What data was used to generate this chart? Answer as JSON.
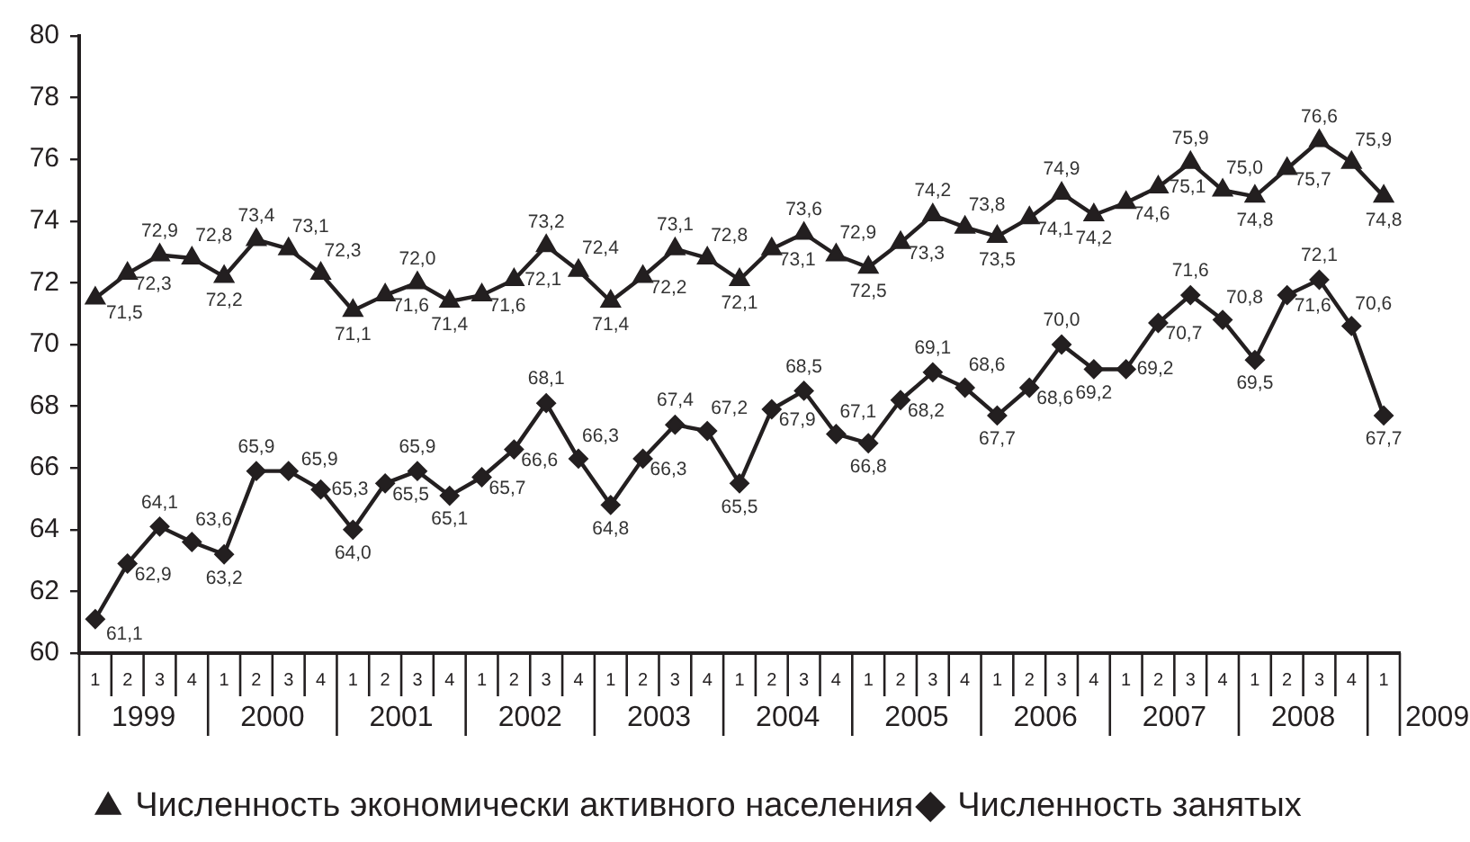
{
  "chart_data": {
    "type": "line",
    "categories": [
      "1",
      "2",
      "3",
      "4",
      "1",
      "2",
      "3",
      "4",
      "1",
      "2",
      "3",
      "4",
      "1",
      "2",
      "3",
      "4",
      "1",
      "2",
      "3",
      "4",
      "1",
      "2",
      "3",
      "4",
      "1",
      "2",
      "3",
      "4",
      "1",
      "2",
      "3",
      "4",
      "1",
      "2",
      "3",
      "4",
      "1",
      "2",
      "3",
      "4",
      "1"
    ],
    "series": [
      {
        "name": "Численность экономически активного населения",
        "color": "#231f20",
        "marker": "triangle",
        "values": [
          71.5,
          72.3,
          72.9,
          72.8,
          72.2,
          73.4,
          73.1,
          72.3,
          71.1,
          71.6,
          72.0,
          71.4,
          71.6,
          72.1,
          73.2,
          72.4,
          71.4,
          72.2,
          73.1,
          72.8,
          72.1,
          73.1,
          73.6,
          72.9,
          72.5,
          73.3,
          74.2,
          73.8,
          73.5,
          74.1,
          74.9,
          74.2,
          74.6,
          75.1,
          75.9,
          75.0,
          74.8,
          75.7,
          76.6,
          75.9,
          74.8
        ],
        "value_labels": [
          "71,5",
          "72,3",
          "72,9",
          "72,8",
          "72,2",
          "73,4",
          "73,1",
          "72,3",
          "71,1",
          "71,6",
          "72,0",
          "71,4",
          "71,6",
          "72,1",
          "73,2",
          "72,4",
          "71,4",
          "72,2",
          "73,1",
          "72,8",
          "72,1",
          "73,1",
          "73,6",
          "72,9",
          "72,5",
          "73,3",
          "74,2",
          "73,8",
          "73,5",
          "74,1",
          "74,9",
          "74,2",
          "74,6",
          "75,1",
          "75,9",
          "75,0",
          "74,8",
          "75,7",
          "76,6",
          "75,9",
          "74,8"
        ]
      },
      {
        "name": "Численность занятых",
        "color": "#231f20",
        "marker": "diamond",
        "values": [
          61.1,
          62.9,
          64.1,
          63.6,
          63.2,
          65.9,
          65.9,
          65.3,
          64.0,
          65.5,
          65.9,
          65.1,
          65.7,
          66.6,
          68.1,
          66.3,
          64.8,
          66.3,
          67.4,
          67.2,
          65.5,
          67.9,
          68.5,
          67.1,
          66.8,
          68.2,
          69.1,
          68.6,
          67.7,
          68.6,
          70.0,
          69.2,
          69.2,
          70.7,
          71.6,
          70.8,
          69.5,
          71.6,
          72.1,
          70.6,
          67.7
        ],
        "value_labels": [
          "61,1",
          "62,9",
          "64,1",
          "63,6",
          "63,2",
          "65,9",
          "65,9",
          "65,3",
          "64,0",
          "65,5",
          "65,9",
          "65,1",
          "65,7",
          "66,6",
          "68,1",
          "66,3",
          "64,8",
          "66,3",
          "67,4",
          "67,2",
          "65,5",
          "67,9",
          "68,5",
          "67,1",
          "66,8",
          "68,2",
          "69,1",
          "68,6",
          "67,7",
          "68,6",
          "70,0",
          "69,2",
          "69,2",
          "70,7",
          "71,6",
          "70,8",
          "69,5",
          "71,6",
          "72,1",
          "70,6",
          "67,7"
        ]
      }
    ],
    "ylim": [
      60,
      80
    ],
    "yticks": [
      60,
      62,
      64,
      66,
      68,
      70,
      72,
      74,
      76,
      78,
      80
    ],
    "legend": "bottom",
    "annotations": [
      "1999",
      "2000",
      "2001",
      "2002",
      "2003",
      "2004",
      "2005",
      "2006",
      "2007",
      "2008",
      "2009"
    ]
  }
}
